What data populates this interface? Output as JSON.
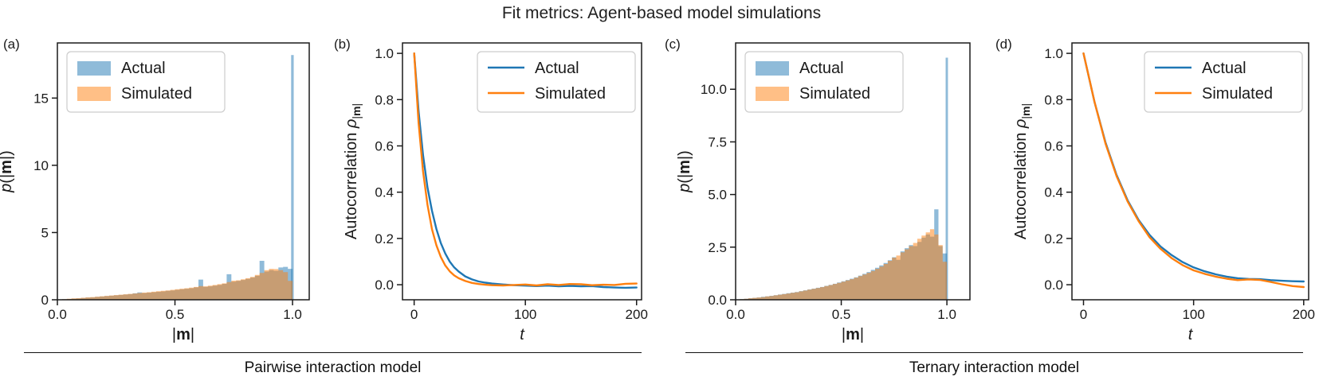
{
  "title": "Fit metrics: Agent-based model simulations",
  "captions": {
    "left": "Pairwise interaction model",
    "right": "Ternary interaction model"
  },
  "colors": {
    "actual": "#1f77b4",
    "simulated": "#ff7f0e",
    "hist_alpha": 0.5,
    "axis": "#1a1a1a",
    "legend_border": "#cccccc"
  },
  "chart_data": [
    {
      "tag": "(a)",
      "type": "histogram",
      "xlabel_parts": [
        {
          "t": "|"
        },
        {
          "t": "m",
          "style": "bold"
        },
        {
          "t": "|"
        }
      ],
      "ylabel_parts": [
        {
          "t": "p",
          "style": "italic"
        },
        {
          "t": "(|"
        },
        {
          "t": "m",
          "style": "bold"
        },
        {
          "t": "|)"
        }
      ],
      "xlim": [
        0,
        1.071
      ],
      "ylim": [
        0,
        19.1
      ],
      "xticks": [
        {
          "v": 0,
          "label": "0.0"
        },
        {
          "v": 0.5,
          "label": "0.5"
        },
        {
          "v": 1.0,
          "label": "1.0"
        }
      ],
      "yticks": [
        {
          "v": 0,
          "label": "0"
        },
        {
          "v": 5,
          "label": "5"
        },
        {
          "v": 10,
          "label": "10"
        },
        {
          "v": 15,
          "label": "15"
        }
      ],
      "legend_position": "top-left",
      "bin_width": 0.02,
      "series": [
        {
          "name": "Actual",
          "values": [
            0.02,
            0.04,
            0.06,
            0.08,
            0.1,
            0.13,
            0.16,
            0.18,
            0.21,
            0.24,
            0.27,
            0.3,
            0.33,
            0.36,
            0.39,
            0.42,
            0.48,
            0.55,
            0.5,
            0.53,
            0.56,
            0.59,
            0.62,
            0.66,
            0.7,
            0.74,
            0.78,
            0.82,
            0.86,
            0.92,
            1.5,
            0.96,
            1.0,
            1.05,
            1.1,
            1.18,
            1.9,
            1.35,
            1.4,
            1.47,
            1.55,
            1.65,
            1.78,
            2.9,
            2.1,
            2.2,
            2.15,
            2.4,
            2.45,
            2.3
          ],
          "spike": {
            "x": 0.994,
            "w": 0.011,
            "v": 18.2
          }
        },
        {
          "name": "Simulated",
          "values": [
            0.02,
            0.05,
            0.07,
            0.1,
            0.12,
            0.15,
            0.18,
            0.2,
            0.23,
            0.26,
            0.29,
            0.32,
            0.35,
            0.38,
            0.41,
            0.44,
            0.47,
            0.5,
            0.53,
            0.56,
            0.6,
            0.63,
            0.66,
            0.7,
            0.74,
            0.78,
            0.82,
            0.86,
            0.9,
            0.95,
            1.02,
            1.0,
            1.05,
            1.1,
            1.16,
            1.22,
            1.32,
            1.42,
            1.45,
            1.52,
            1.6,
            1.7,
            1.85,
            2.0,
            2.2,
            2.3,
            2.28,
            2.2,
            2.05,
            1.4
          ]
        }
      ]
    },
    {
      "tag": "(b)",
      "type": "line",
      "xlabel_parts": [
        {
          "t": "t",
          "style": "italic"
        }
      ],
      "ylabel_parts": [
        {
          "t": "Autocorrelation "
        },
        {
          "t": "ρ",
          "style": "italic"
        },
        {
          "t": "|",
          "style": "sub"
        },
        {
          "t": "m",
          "style": "bold-sub"
        },
        {
          "t": "|",
          "style": "sub"
        }
      ],
      "xlim": [
        -10.5,
        204.5
      ],
      "ylim": [
        -0.065,
        1.045
      ],
      "xticks": [
        {
          "v": 0,
          "label": "0"
        },
        {
          "v": 100,
          "label": "100"
        },
        {
          "v": 200,
          "label": "200"
        }
      ],
      "yticks": [
        {
          "v": 0,
          "label": "0.0"
        },
        {
          "v": 0.2,
          "label": "0.2"
        },
        {
          "v": 0.4,
          "label": "0.4"
        },
        {
          "v": 0.6,
          "label": "0.6"
        },
        {
          "v": 0.8,
          "label": "0.8"
        },
        {
          "v": 1.0,
          "label": "1.0"
        }
      ],
      "legend_position": "top-right",
      "series": [
        {
          "name": "Actual",
          "x": [
            0,
            4,
            8,
            12,
            16,
            20,
            24,
            28,
            32,
            36,
            40,
            46,
            52,
            58,
            64,
            70,
            80,
            90,
            100,
            110,
            120,
            130,
            140,
            150,
            160,
            170,
            180,
            190,
            200
          ],
          "y": [
            1.0,
            0.75,
            0.56,
            0.42,
            0.32,
            0.24,
            0.18,
            0.135,
            0.1,
            0.075,
            0.057,
            0.036,
            0.023,
            0.014,
            0.009,
            0.005,
            0.001,
            -0.002,
            -0.004,
            -0.006,
            -0.004,
            -0.007,
            -0.005,
            -0.007,
            -0.006,
            -0.01,
            -0.012,
            -0.013,
            -0.012
          ]
        },
        {
          "name": "Simulated",
          "x": [
            0,
            4,
            8,
            12,
            16,
            20,
            24,
            28,
            32,
            36,
            40,
            46,
            52,
            58,
            64,
            70,
            80,
            90,
            100,
            110,
            120,
            130,
            140,
            150,
            160,
            170,
            180,
            190,
            200
          ],
          "y": [
            1.0,
            0.7,
            0.49,
            0.345,
            0.24,
            0.17,
            0.12,
            0.083,
            0.058,
            0.04,
            0.028,
            0.016,
            0.008,
            0.003,
            0.0,
            -0.002,
            -0.003,
            -0.001,
            0.001,
            -0.003,
            0.002,
            -0.001,
            0.003,
            0.002,
            -0.002,
            0.0,
            -0.001,
            0.004,
            0.005
          ]
        }
      ]
    },
    {
      "tag": "(c)",
      "type": "histogram",
      "xlabel_parts": [
        {
          "t": "|"
        },
        {
          "t": "m",
          "style": "bold"
        },
        {
          "t": "|"
        }
      ],
      "ylabel_parts": [
        {
          "t": "p",
          "style": "italic"
        },
        {
          "t": "(|"
        },
        {
          "t": "m",
          "style": "bold"
        },
        {
          "t": "|)"
        }
      ],
      "xlim": [
        0,
        1.109
      ],
      "ylim": [
        0,
        12.2
      ],
      "xticks": [
        {
          "v": 0,
          "label": "0.0"
        },
        {
          "v": 0.5,
          "label": "0.5"
        },
        {
          "v": 1.0,
          "label": "1.0"
        }
      ],
      "yticks": [
        {
          "v": 0,
          "label": "0.0"
        },
        {
          "v": 2.5,
          "label": "2.5"
        },
        {
          "v": 5,
          "label": "5.0"
        },
        {
          "v": 7.5,
          "label": "7.5"
        },
        {
          "v": 10,
          "label": "10.0"
        }
      ],
      "legend_position": "top-left",
      "bin_width": 0.02,
      "series": [
        {
          "name": "Actual",
          "values": [
            0.01,
            0.03,
            0.05,
            0.07,
            0.09,
            0.11,
            0.14,
            0.16,
            0.19,
            0.22,
            0.25,
            0.28,
            0.31,
            0.34,
            0.37,
            0.41,
            0.45,
            0.49,
            0.53,
            0.57,
            0.61,
            0.66,
            0.71,
            0.76,
            0.82,
            0.88,
            0.94,
            1.0,
            1.07,
            1.15,
            1.23,
            1.32,
            1.42,
            1.52,
            1.63,
            1.75,
            1.88,
            2.02,
            1.9,
            2.3,
            2.45,
            2.6,
            2.55,
            2.75,
            2.95,
            3.1,
            3.0,
            4.3,
            2.55,
            2.2
          ],
          "spike": {
            "x": 0.994,
            "w": 0.011,
            "v": 11.5
          }
        },
        {
          "name": "Simulated",
          "values": [
            0.01,
            0.03,
            0.05,
            0.07,
            0.09,
            0.11,
            0.13,
            0.16,
            0.18,
            0.21,
            0.24,
            0.27,
            0.3,
            0.33,
            0.36,
            0.4,
            0.44,
            0.48,
            0.52,
            0.56,
            0.6,
            0.65,
            0.7,
            0.75,
            0.8,
            0.86,
            0.92,
            0.98,
            1.05,
            1.12,
            1.2,
            1.28,
            1.37,
            1.47,
            1.58,
            1.7,
            1.85,
            2.0,
            2.1,
            2.25,
            2.4,
            2.55,
            2.7,
            2.9,
            3.05,
            3.2,
            3.35,
            3.1,
            2.6,
            1.8
          ]
        }
      ]
    },
    {
      "tag": "(d)",
      "type": "line",
      "xlabel_parts": [
        {
          "t": "t",
          "style": "italic"
        }
      ],
      "ylabel_parts": [
        {
          "t": "Autocorrelation "
        },
        {
          "t": "ρ",
          "style": "italic"
        },
        {
          "t": "|",
          "style": "sub"
        },
        {
          "t": "m",
          "style": "bold-sub"
        },
        {
          "t": "|",
          "style": "sub"
        }
      ],
      "xlim": [
        -10.5,
        204.5
      ],
      "ylim": [
        -0.065,
        1.045
      ],
      "xticks": [
        {
          "v": 0,
          "label": "0"
        },
        {
          "v": 100,
          "label": "100"
        },
        {
          "v": 200,
          "label": "200"
        }
      ],
      "yticks": [
        {
          "v": 0,
          "label": "0.0"
        },
        {
          "v": 0.2,
          "label": "0.2"
        },
        {
          "v": 0.4,
          "label": "0.4"
        },
        {
          "v": 0.6,
          "label": "0.6"
        },
        {
          "v": 0.8,
          "label": "0.8"
        },
        {
          "v": 1.0,
          "label": "1.0"
        }
      ],
      "legend_position": "top-right",
      "series": [
        {
          "name": "Actual",
          "x": [
            0,
            10,
            20,
            30,
            40,
            50,
            60,
            70,
            80,
            90,
            100,
            110,
            120,
            130,
            140,
            150,
            160,
            170,
            180,
            190,
            200
          ],
          "y": [
            1.0,
            0.79,
            0.615,
            0.475,
            0.365,
            0.28,
            0.215,
            0.165,
            0.128,
            0.098,
            0.075,
            0.058,
            0.045,
            0.035,
            0.028,
            0.025,
            0.024,
            0.02,
            0.017,
            0.015,
            0.014
          ]
        },
        {
          "name": "Simulated",
          "x": [
            0,
            10,
            20,
            30,
            40,
            50,
            60,
            70,
            80,
            90,
            100,
            110,
            120,
            130,
            140,
            150,
            160,
            170,
            180,
            190,
            200
          ],
          "y": [
            1.0,
            0.79,
            0.61,
            0.47,
            0.36,
            0.275,
            0.205,
            0.155,
            0.115,
            0.085,
            0.062,
            0.047,
            0.035,
            0.026,
            0.02,
            0.023,
            0.021,
            0.012,
            0.002,
            -0.006,
            -0.01
          ]
        }
      ]
    }
  ]
}
